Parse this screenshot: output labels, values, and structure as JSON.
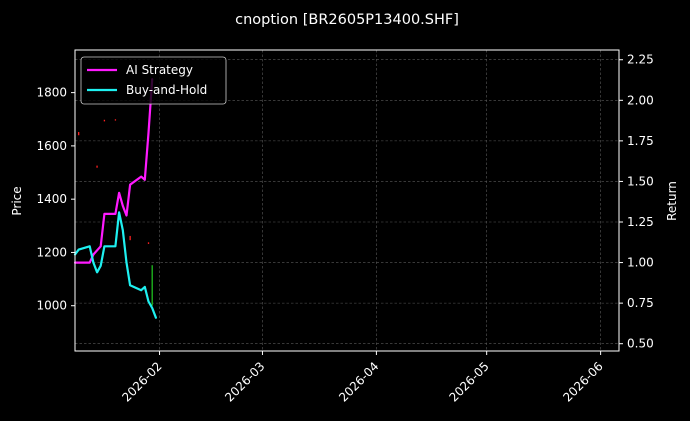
{
  "chart_data": {
    "type": "line",
    "title": "cnoption [BR2605P13400.SHF]",
    "xlabel": "",
    "ylabel": "Price",
    "y2label": "Return",
    "x_ticks": [
      "2026-02",
      "2026-03",
      "2026-04",
      "2026-05",
      "2026-06"
    ],
    "x_range": [
      "2026-01-09",
      "2026-06-06"
    ],
    "ylim": [
      830,
      1960
    ],
    "y_ticks": [
      1000,
      1200,
      1400,
      1600,
      1800
    ],
    "y2lim": [
      0.455,
      2.31
    ],
    "y2_ticks": [
      0.5,
      0.75,
      1.0,
      1.25,
      1.5,
      1.75,
      2.0,
      2.25
    ],
    "grid": true,
    "legend_position": "top-left",
    "background": "#000000",
    "series": [
      {
        "name": "AI Strategy",
        "axis": "right",
        "color": "#ff1aff",
        "points": [
          [
            "2026-01-09",
            1.0
          ],
          [
            "2026-01-13",
            1.0
          ],
          [
            "2026-01-14",
            1.05
          ],
          [
            "2026-01-16",
            1.1
          ],
          [
            "2026-01-17",
            1.3
          ],
          [
            "2026-01-20",
            1.3
          ],
          [
            "2026-01-21",
            1.43
          ],
          [
            "2026-01-22",
            1.35
          ],
          [
            "2026-01-23",
            1.29
          ],
          [
            "2026-01-24",
            1.48
          ],
          [
            "2026-01-27",
            1.53
          ],
          [
            "2026-01-28",
            1.51
          ],
          [
            "2026-01-29",
            1.8
          ],
          [
            "2026-01-30",
            2.13
          ]
        ]
      },
      {
        "name": "Buy-and-Hold",
        "axis": "right",
        "color": "#1ef0f0",
        "points": [
          [
            "2026-01-09",
            1.05
          ],
          [
            "2026-01-10",
            1.08
          ],
          [
            "2026-01-13",
            1.1
          ],
          [
            "2026-01-14",
            1.0
          ],
          [
            "2026-01-15",
            0.94
          ],
          [
            "2026-01-16",
            0.98
          ],
          [
            "2026-01-17",
            1.1
          ],
          [
            "2026-01-20",
            1.1
          ],
          [
            "2026-01-21",
            1.31
          ],
          [
            "2026-01-22",
            1.2
          ],
          [
            "2026-01-23",
            1.0
          ],
          [
            "2026-01-24",
            0.86
          ],
          [
            "2026-01-27",
            0.83
          ],
          [
            "2026-01-28",
            0.85
          ],
          [
            "2026-01-29",
            0.76
          ],
          [
            "2026-01-30",
            0.72
          ],
          [
            "2026-01-31",
            0.66
          ]
        ]
      }
    ],
    "price_marks": [
      {
        "x": "2026-01-10",
        "low": 1640,
        "high": 1652,
        "color": "#ff2020"
      },
      {
        "x": "2026-01-15",
        "low": 1518,
        "high": 1526,
        "color": "#ff2020"
      },
      {
        "x": "2026-01-17",
        "low": 1692,
        "high": 1698,
        "color": "#ff2020"
      },
      {
        "x": "2026-01-20",
        "low": 1695,
        "high": 1700,
        "color": "#ff2020"
      },
      {
        "x": "2026-01-24",
        "low": 1246,
        "high": 1262,
        "color": "#ff2020"
      },
      {
        "x": "2026-01-29",
        "low": 1232,
        "high": 1238,
        "color": "#ff2020"
      },
      {
        "x": "2026-01-30",
        "low": 1000,
        "high": 1152,
        "color": "#1fbf1f"
      }
    ]
  }
}
